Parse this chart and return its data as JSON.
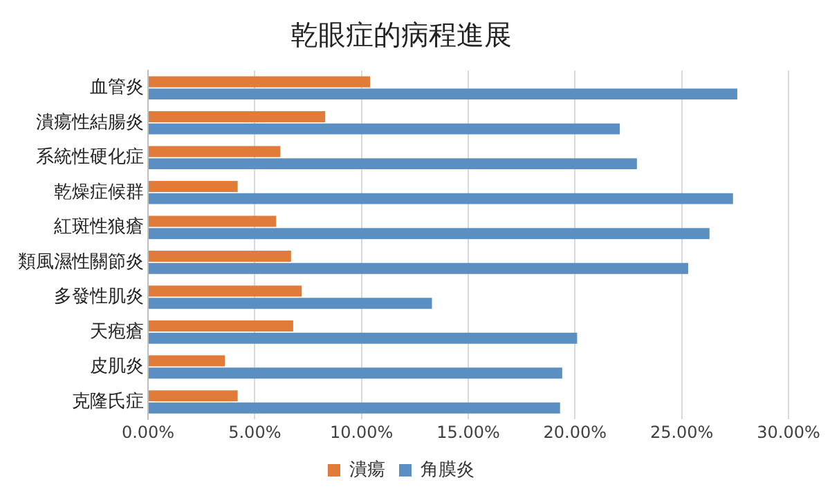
{
  "chart_data": {
    "type": "bar",
    "orientation": "horizontal",
    "title": "乾眼症的病程進展",
    "categories": [
      "血管炎",
      "潰瘍性結腸炎",
      "系統性硬化症",
      "乾燥症候群",
      "紅斑性狼瘡",
      "類風濕性關節炎",
      "多發性肌炎",
      "天疱瘡",
      "皮肌炎",
      "克隆氏症"
    ],
    "series": [
      {
        "name": "潰瘍",
        "color": "#e07b39",
        "values": [
          10.4,
          8.3,
          6.2,
          4.2,
          6.0,
          6.7,
          7.2,
          6.8,
          3.6,
          4.2
        ]
      },
      {
        "name": "角膜炎",
        "color": "#5b8fc2",
        "values": [
          27.6,
          22.1,
          22.9,
          27.4,
          26.3,
          25.3,
          13.3,
          20.1,
          19.4,
          19.3
        ]
      }
    ],
    "xlim": [
      0,
      30
    ],
    "xticks": [
      {
        "value": 0,
        "label": "0.00%"
      },
      {
        "value": 5,
        "label": "5.00%"
      },
      {
        "value": 10,
        "label": "10.00%"
      },
      {
        "value": 15,
        "label": "15.00%"
      },
      {
        "value": 20,
        "label": "20.00%"
      },
      {
        "value": 25,
        "label": "25.00%"
      },
      {
        "value": 30,
        "label": "30.00%"
      }
    ],
    "grid": "x",
    "legend": "bottom"
  }
}
